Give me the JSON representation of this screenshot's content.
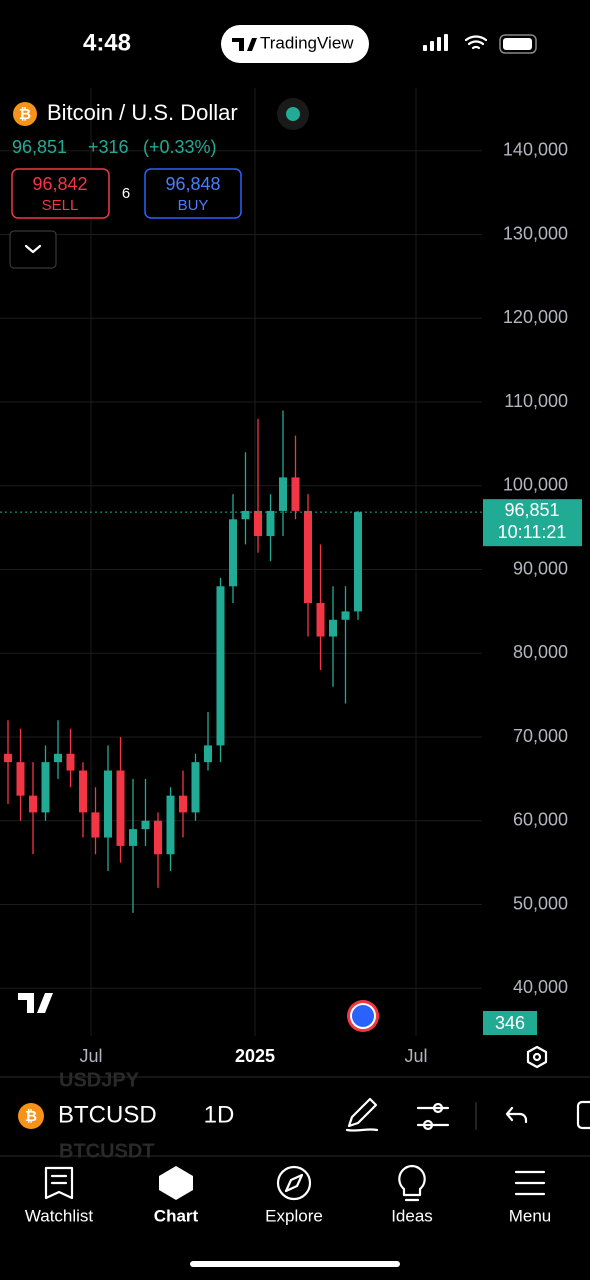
{
  "status_bar": {
    "time": "4:48",
    "app_pill": "TradingView"
  },
  "quote": {
    "title": "Bitcoin / U.S. Dollar",
    "last": "96,851",
    "change": "+316",
    "change_pct": "(+0.33%)",
    "sell": "96,842",
    "sell_label": "SELL",
    "spread": "6",
    "buy": "96,848",
    "buy_label": "BUY"
  },
  "chart_data": {
    "type": "candlestick",
    "categories": [
      null,
      null,
      null,
      null,
      null,
      null,
      null,
      null,
      null,
      null,
      null,
      null,
      null,
      null,
      null,
      null,
      null,
      null,
      null,
      null,
      null,
      null,
      null,
      null,
      null,
      null,
      null,
      null,
      null
    ],
    "open": [
      68000,
      67000,
      63000,
      61000,
      67000,
      68000,
      66000,
      61000,
      58000,
      66000,
      57000,
      59000,
      60000,
      56000,
      63000,
      61000,
      67000,
      69000,
      88000,
      96000,
      97000,
      94000,
      97000,
      101000,
      97000,
      86000,
      82000,
      84000,
      85000
    ],
    "high": [
      72000,
      71000,
      67000,
      69000,
      72000,
      71000,
      67000,
      64000,
      69000,
      70000,
      65000,
      65000,
      61000,
      64000,
      66000,
      68000,
      73000,
      89000,
      99000,
      104000,
      108000,
      99000,
      109000,
      106000,
      99000,
      93000,
      88000,
      88000,
      97000
    ],
    "low": [
      62000,
      60000,
      56000,
      60000,
      65000,
      64000,
      58000,
      56000,
      54000,
      55000,
      49000,
      57000,
      52000,
      54000,
      58000,
      60000,
      66000,
      67000,
      86000,
      93000,
      92000,
      91000,
      94000,
      96000,
      82000,
      78000,
      76000,
      74000,
      84000
    ],
    "close": [
      67000,
      63000,
      61000,
      67000,
      68000,
      66000,
      61000,
      58000,
      66000,
      57000,
      59000,
      60000,
      56000,
      63000,
      61000,
      67000,
      69000,
      88000,
      96000,
      97000,
      94000,
      97000,
      101000,
      97000,
      86000,
      82000,
      84000,
      85000,
      96851
    ],
    "up_color": "#22ab94",
    "down_color": "#f23645",
    "ylim": [
      34300,
      147500
    ],
    "yticks": [
      {
        "value": 40000,
        "label": "40,000"
      },
      {
        "value": 50000,
        "label": "50,000"
      },
      {
        "value": 60000,
        "label": "60,000"
      },
      {
        "value": 70000,
        "label": "70,000"
      },
      {
        "value": 80000,
        "label": "80,000"
      },
      {
        "value": 90000,
        "label": "90,000"
      },
      {
        "value": 100000,
        "label": "100,000"
      },
      {
        "value": 110000,
        "label": "110,000"
      },
      {
        "value": 120000,
        "label": "120,000"
      },
      {
        "value": 130000,
        "label": "130,000"
      },
      {
        "value": 140000,
        "label": "140,000"
      }
    ],
    "grid": true,
    "x_labels": [
      "Jul",
      "2025",
      "Jul"
    ],
    "last_price": {
      "value": 96851,
      "label": "96,851"
    },
    "countdown": "10:11:21",
    "volume_value": 346
  },
  "toolbar": {
    "symbol": "BTCUSD",
    "interval": "1D",
    "suggestion_above": "USDJPY",
    "suggestion_below": "BTCUSDT"
  },
  "nav": [
    "Watchlist",
    "Chart",
    "Explore",
    "Ideas",
    "Menu"
  ]
}
